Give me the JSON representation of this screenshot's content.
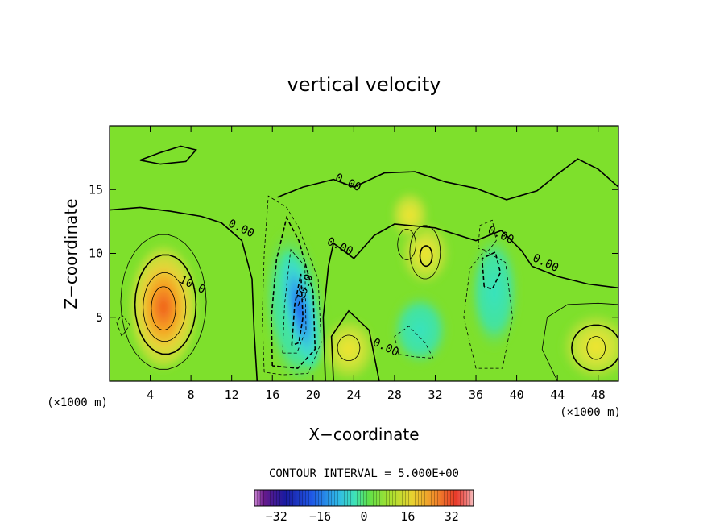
{
  "chart_data": {
    "type": "heatmap",
    "title": "vertical velocity",
    "xlabel": "X−coordinate",
    "ylabel": "Z−coordinate",
    "xlim": [
      0,
      50
    ],
    "ylim": [
      0,
      20
    ],
    "x_ticks": [
      4,
      8,
      12,
      16,
      20,
      24,
      28,
      32,
      36,
      40,
      44,
      48
    ],
    "y_ticks": [
      5,
      10,
      15
    ],
    "x_unit": "(×1000 m)",
    "z_unit": "(×1000 m)",
    "contour_interval_text": "CONTOUR INTERVAL = 5.000E+00",
    "contour_interval": 5.0,
    "contour_labels": [
      {
        "text": "10.0",
        "x": 8.0,
        "z": 7.3
      },
      {
        "text": "0.00",
        "x": 12.8,
        "z": 11.7
      },
      {
        "text": "0.00",
        "x": 23.3,
        "z": 15.3
      },
      {
        "text": "0.00",
        "x": 22.5,
        "z": 10.3
      },
      {
        "text": "0.00",
        "x": 38.3,
        "z": 11.2
      },
      {
        "text": "0.00",
        "x": 42.7,
        "z": 9.0
      },
      {
        "text": "0.00",
        "x": 27.0,
        "z": 2.4
      },
      {
        "text": "−10.0",
        "x": 19.4,
        "z": 7.0
      }
    ],
    "colorbar": {
      "ticks": [
        "−32",
        "−16",
        "0",
        "16",
        "32"
      ],
      "range": [
        -40,
        40
      ]
    },
    "features": [
      {
        "kind": "updraft",
        "x": 5.3,
        "z": 5.8,
        "peak": 30
      },
      {
        "kind": "downdraft",
        "x": 18.5,
        "z": 5.5,
        "peak": -28
      },
      {
        "kind": "updraft",
        "x": 23.5,
        "z": 2.5,
        "peak": 15
      },
      {
        "kind": "updraft",
        "x": 47.8,
        "z": 2.7,
        "peak": 15
      },
      {
        "kind": "updraft",
        "x": 31.0,
        "z": 10.0,
        "peak": 12
      },
      {
        "kind": "downdraft",
        "x": 37.5,
        "z": 8.5,
        "peak": -9
      }
    ]
  }
}
